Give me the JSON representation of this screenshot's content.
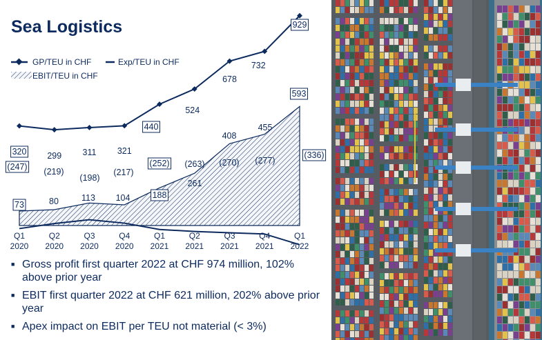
{
  "title": "Sea Logistics",
  "legend": {
    "gp": "GP/TEU in CHF",
    "exp": "Exp/TEU in CHF",
    "ebit": "EBIT/TEU in CHF"
  },
  "colors": {
    "navy": "#0c2a5e",
    "hatch_bg": "#f4f6f9"
  },
  "chart_data": {
    "type": "line",
    "categories": [
      "Q1 2020",
      "Q2 2020",
      "Q3 2020",
      "Q4 2020",
      "Q1 2021",
      "Q2 2021",
      "Q3 2021",
      "Q4 2021",
      "Q1 2022"
    ],
    "category_lines": [
      [
        "Q1",
        "2020"
      ],
      [
        "Q2",
        "2020"
      ],
      [
        "Q3",
        "2020"
      ],
      [
        "Q4",
        "2020"
      ],
      [
        "Q1",
        "2021"
      ],
      [
        "Q2",
        "2021"
      ],
      [
        "Q3",
        "2021"
      ],
      [
        "Q4",
        "2021"
      ],
      [
        "Q1",
        "2022"
      ]
    ],
    "series": [
      {
        "name": "GP/TEU in CHF",
        "type": "line",
        "marker": "diamond",
        "values": [
          320,
          299,
          311,
          321,
          440,
          524,
          678,
          732,
          929
        ],
        "labels": [
          "320",
          "299",
          "311",
          "321",
          "440",
          "524",
          "678",
          "732",
          "929"
        ]
      },
      {
        "name": "Exp/TEU in CHF",
        "type": "line",
        "values": [
          -247,
          -219,
          -198,
          -217,
          -252,
          -263,
          -270,
          -277,
          -336
        ],
        "labels": [
          "(247)",
          "(219)",
          "(198)",
          "(217)",
          "(252)",
          "(263)",
          "(270)",
          "(277)",
          "(336)"
        ]
      },
      {
        "name": "EBIT/TEU in CHF",
        "type": "area",
        "pattern": "hatched",
        "values": [
          73,
          80,
          113,
          104,
          188,
          261,
          408,
          455,
          593
        ],
        "labels": [
          "73",
          "80",
          "113",
          "104",
          "188",
          "261",
          "408",
          "455",
          "593"
        ]
      }
    ],
    "boxed_labels": {
      "GP/TEU in CHF": [
        0,
        4,
        8
      ],
      "Exp/TEU in CHF": [
        0,
        4,
        8
      ],
      "EBIT/TEU in CHF": [
        0,
        4,
        8
      ]
    }
  },
  "bullets": [
    "Gross profit first quarter 2022 at CHF 974 million, 102% above prior year",
    "EBIT first quarter 2022 at CHF 621 million, 202% above prior year",
    "Apex impact on EBIT per TEU not material (< 3%)"
  ],
  "photo_icon": "container-port-aerial-photo"
}
